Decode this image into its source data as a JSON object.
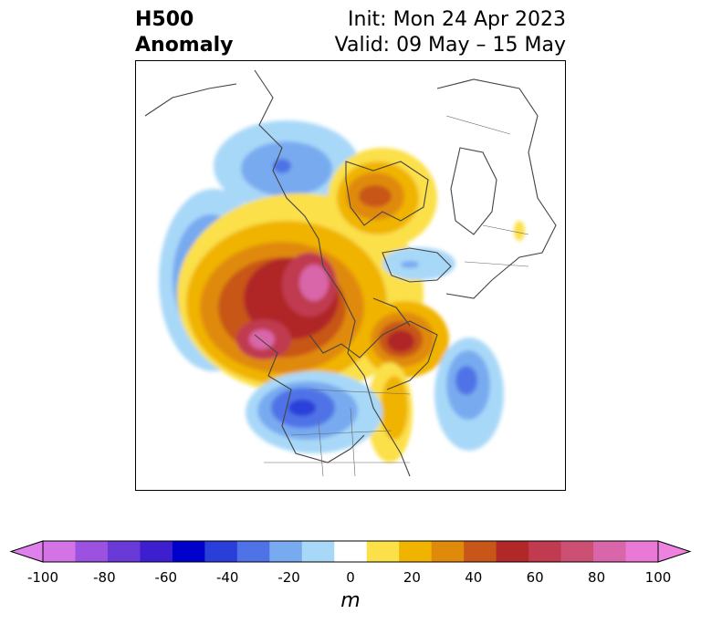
{
  "header": {
    "variable": "H500",
    "subtitle": "Anomaly",
    "init": "Init: Mon 24 Apr 2023",
    "valid": "Valid: 09 May – 15 May"
  },
  "colorbar": {
    "unit": "m",
    "ticks": [
      "-100",
      "-80",
      "-60",
      "-40",
      "-20",
      "0",
      "20",
      "40",
      "60",
      "80",
      "100"
    ],
    "bins": [
      "#d473e6",
      "#9c52e0",
      "#6a3ad8",
      "#3e1fd0",
      "#0000cc",
      "#2a3fd9",
      "#4f73e6",
      "#78aaf0",
      "#a8d8f8",
      "#ffffff",
      "#fbe04a",
      "#f0b400",
      "#e08a0c",
      "#c85618",
      "#b02828",
      "#c03a50",
      "#cc4f74",
      "#d866a8",
      "#e87ad6"
    ],
    "under_color": "#e080ec",
    "over_color": "#ee82e0"
  }
}
